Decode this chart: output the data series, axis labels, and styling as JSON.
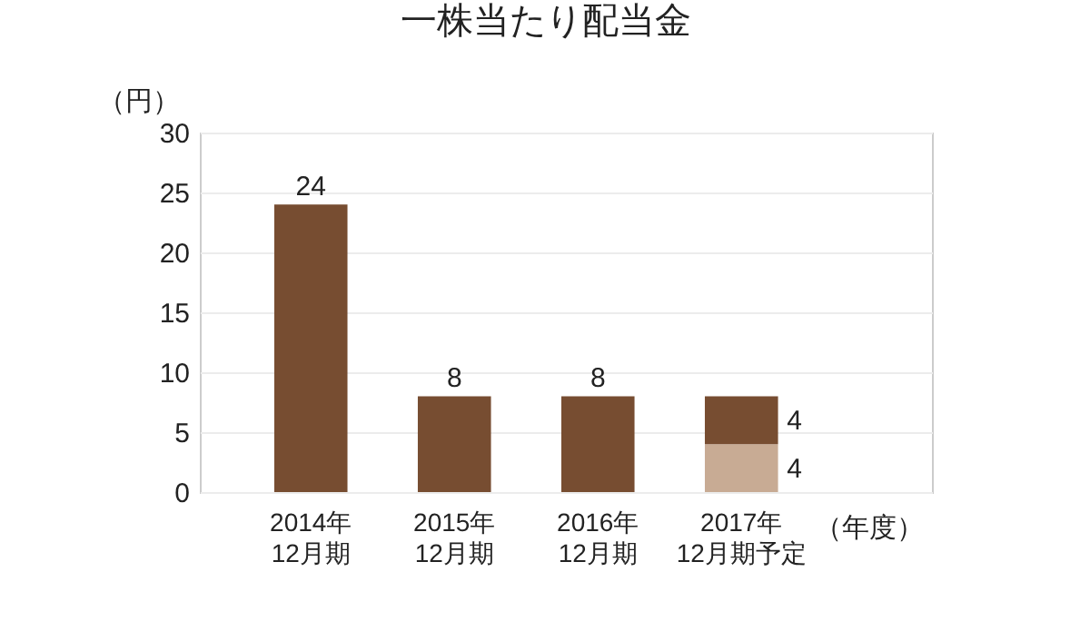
{
  "chart_data": {
    "type": "bar",
    "title": "一株当たり配当金",
    "ylabel": "（円）",
    "xlabel": "（年度）",
    "categories": [
      "2014年\n12月期",
      "2015年\n12月期",
      "2016年\n12月期",
      "2017年\n12月期予定"
    ],
    "stacked": true,
    "series": [
      {
        "color": "#c8ab94",
        "values": [
          null,
          null,
          null,
          4
        ]
      },
      {
        "color": "#774d31",
        "values": [
          24,
          8,
          8,
          4
        ]
      }
    ],
    "ylim": [
      0,
      30
    ],
    "yticks": [
      0,
      5,
      10,
      15,
      20,
      25,
      30
    ],
    "grid": "y",
    "data_labels": true,
    "legend": false
  }
}
